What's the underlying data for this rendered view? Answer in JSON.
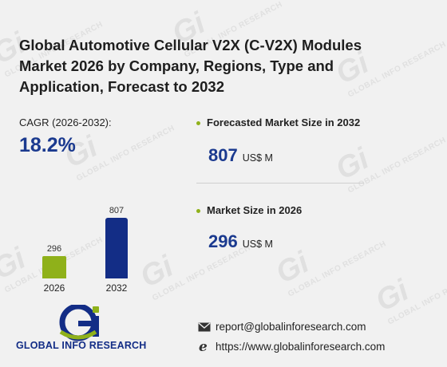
{
  "title": "Global Automotive Cellular V2X (C-V2X) Modules Market 2026 by Company, Regions, Type and Application, Forecast to 2032",
  "cagr": {
    "label": "CAGR (2026-2032):",
    "value": "18.2%"
  },
  "chart_data": {
    "type": "bar",
    "categories": [
      "2026",
      "2032"
    ],
    "values": [
      296,
      807
    ],
    "colors": [
      "#8fb11a",
      "#132d86"
    ]
  },
  "forecast": {
    "label": "Forecasted Market Size in 2032",
    "value": "807",
    "unit": "US$ M"
  },
  "market_size": {
    "label": "Market Size in 2026",
    "value": "296",
    "unit": "US$ M"
  },
  "brand": {
    "logo_mark": "Gi",
    "name": "GLOBAL INFO RESEARCH",
    "watermark_text": "GLOBAL INFO RESEARCH"
  },
  "contact": {
    "email": "report@globalinforesearch.com",
    "website": "https://www.globalinforesearch.com"
  },
  "colors": {
    "accent_blue": "#1b3a8f",
    "accent_green": "#8fb11a",
    "background": "#f1f1f1"
  }
}
